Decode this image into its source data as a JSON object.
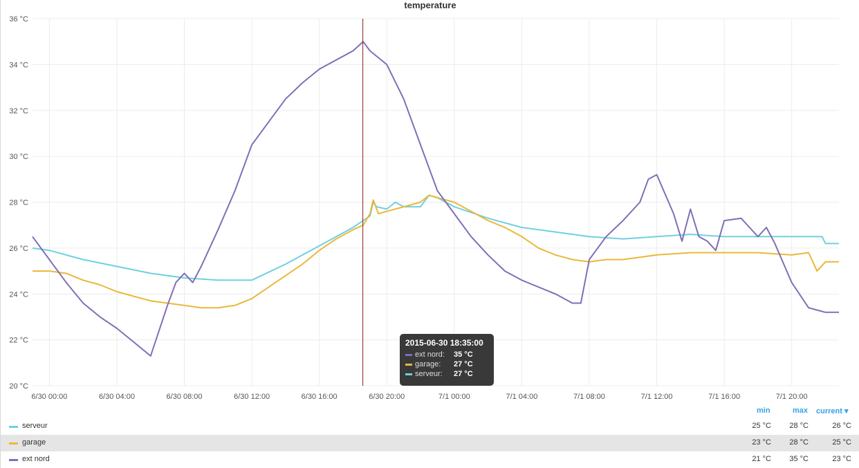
{
  "panel": {
    "title": "temperature"
  },
  "chart_data": {
    "type": "line",
    "title": "temperature",
    "ylim": [
      20,
      36
    ],
    "yticks": [
      "20 °C",
      "22 °C",
      "24 °C",
      "26 °C",
      "28 °C",
      "30 °C",
      "32 °C",
      "34 °C",
      "36 °C"
    ],
    "xticks": [
      "6/30 00:00",
      "6/30 04:00",
      "6/30 08:00",
      "6/30 12:00",
      "6/30 16:00",
      "6/30 20:00",
      "7/1 00:00",
      "7/1 04:00",
      "7/1 08:00",
      "7/1 12:00",
      "7/1 16:00",
      "7/1 20:00"
    ],
    "x_hours_range": [
      -1.0,
      46.8
    ],
    "grid": true,
    "crosshair_hour": 18.58,
    "series": [
      {
        "name": "serveur",
        "color": "#6ed0e0",
        "hours": [
          -1.0,
          0,
          2,
          4,
          6,
          8,
          10,
          12,
          14,
          16,
          18,
          18.6,
          19,
          19.2,
          19.4,
          20,
          20.5,
          21,
          22,
          22.5,
          23,
          24,
          26,
          28,
          30,
          32,
          34,
          36,
          38,
          40,
          42,
          44,
          45.8,
          46,
          46.8
        ],
        "values": [
          26.0,
          25.9,
          25.5,
          25.2,
          24.9,
          24.7,
          24.6,
          24.6,
          25.3,
          26.1,
          26.9,
          27.2,
          27.4,
          28.0,
          27.8,
          27.7,
          28.0,
          27.8,
          27.8,
          28.3,
          28.2,
          27.8,
          27.3,
          26.9,
          26.7,
          26.5,
          26.4,
          26.5,
          26.6,
          26.5,
          26.5,
          26.5,
          26.5,
          26.2,
          26.2
        ]
      },
      {
        "name": "garage",
        "color": "#eab839",
        "hours": [
          -1.0,
          0,
          1,
          2,
          3,
          4,
          5,
          6,
          7,
          8,
          9,
          10,
          11,
          12,
          13,
          14,
          15,
          16,
          17,
          18,
          18.6,
          19,
          19.2,
          19.5,
          20,
          21,
          22,
          22.5,
          23,
          24,
          25,
          26,
          27,
          28,
          29,
          30,
          31,
          32,
          33,
          34,
          35,
          36,
          38,
          40,
          42,
          44,
          45,
          45.5,
          46,
          46.8
        ],
        "values": [
          25.0,
          25.0,
          24.9,
          24.6,
          24.4,
          24.1,
          23.9,
          23.7,
          23.6,
          23.5,
          23.4,
          23.4,
          23.5,
          23.8,
          24.3,
          24.8,
          25.3,
          25.9,
          26.4,
          26.8,
          27.0,
          27.5,
          28.1,
          27.5,
          27.6,
          27.8,
          28.0,
          28.3,
          28.2,
          28.0,
          27.6,
          27.2,
          26.9,
          26.5,
          26.0,
          25.7,
          25.5,
          25.4,
          25.5,
          25.5,
          25.6,
          25.7,
          25.8,
          25.8,
          25.8,
          25.7,
          25.8,
          25.0,
          25.4,
          25.4
        ]
      },
      {
        "name": "ext nord",
        "color": "#806eb7",
        "hours": [
          -1.0,
          0,
          1,
          2,
          3,
          4,
          5,
          6,
          7,
          7.5,
          8,
          8.5,
          9,
          10,
          11,
          12,
          13,
          14,
          15,
          16,
          17,
          18,
          18.6,
          19,
          20,
          21,
          22,
          23,
          24,
          25,
          26,
          27,
          28,
          29,
          30,
          31,
          31.5,
          32,
          33,
          34,
          35,
          35.5,
          36,
          37,
          37.5,
          38,
          38.5,
          39,
          39.5,
          40,
          41,
          41.5,
          42,
          42.5,
          43,
          44,
          45,
          45.5,
          46,
          46.5,
          46.8
        ],
        "values": [
          26.5,
          25.5,
          24.5,
          23.6,
          23.0,
          22.5,
          21.9,
          21.3,
          23.5,
          24.5,
          24.9,
          24.5,
          25.2,
          26.8,
          28.5,
          30.5,
          31.5,
          32.5,
          33.2,
          33.8,
          34.2,
          34.6,
          35.0,
          34.6,
          34.0,
          32.5,
          30.5,
          28.5,
          27.5,
          26.5,
          25.7,
          25.0,
          24.6,
          24.3,
          24.0,
          23.6,
          23.6,
          25.5,
          26.5,
          27.2,
          28.0,
          29.0,
          29.2,
          27.5,
          26.3,
          27.7,
          26.5,
          26.3,
          25.9,
          27.2,
          27.3,
          26.9,
          26.5,
          26.9,
          26.2,
          24.5,
          23.4,
          23.3,
          23.2,
          23.2,
          23.2
        ]
      }
    ]
  },
  "tooltip": {
    "time": "2015-06-30 18:35:00",
    "rows": [
      {
        "name": "ext nord:",
        "value": "35 °C",
        "color": "#806eb7"
      },
      {
        "name": "garage:",
        "value": "27 °C",
        "color": "#eab839"
      },
      {
        "name": "serveur:",
        "value": "27 °C",
        "color": "#6ed0e0"
      }
    ]
  },
  "legend": {
    "headers": {
      "min": "min",
      "max": "max",
      "current": "current ▾"
    },
    "rows": [
      {
        "name": "serveur",
        "color": "#6ed0e0",
        "min": "25 °C",
        "max": "28 °C",
        "current": "26 °C"
      },
      {
        "name": "garage",
        "color": "#eab839",
        "min": "23 °C",
        "max": "28 °C",
        "current": "25 °C"
      },
      {
        "name": "ext nord",
        "color": "#806eb7",
        "min": "21 °C",
        "max": "35 °C",
        "current": "23 °C"
      }
    ]
  }
}
